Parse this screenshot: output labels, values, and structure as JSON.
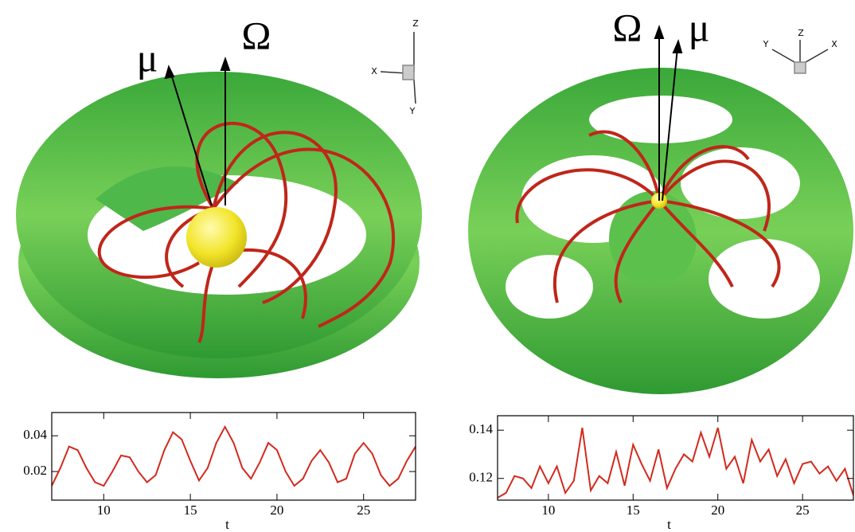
{
  "panels": [
    {
      "vectors": [
        "μ",
        "Ω"
      ],
      "triad": [
        "X",
        "Y",
        "Z"
      ]
    },
    {
      "vectors": [
        "Ω",
        "μ"
      ],
      "triad": [
        "Y",
        "Z",
        "X"
      ]
    }
  ],
  "chart_data": [
    {
      "type": "line",
      "xlabel": "t",
      "xlim": [
        7,
        28
      ],
      "xticks": [
        10,
        15,
        20,
        25
      ],
      "ylim": [
        0.004,
        0.053
      ],
      "yticks": [
        0.02,
        0.04
      ],
      "x": [
        7,
        7.5,
        8,
        8.5,
        9,
        9.5,
        10,
        10.5,
        11,
        11.5,
        12,
        12.5,
        13,
        13.5,
        14,
        14.5,
        15,
        15.5,
        16,
        16.5,
        17,
        17.5,
        18,
        18.5,
        19,
        19.5,
        20,
        20.5,
        21,
        21.5,
        22,
        22.5,
        23,
        23.5,
        24,
        24.5,
        25,
        25.5,
        26,
        26.5,
        27,
        27.5,
        28
      ],
      "series": [
        {
          "color": "#d22a1e",
          "values": [
            0.012,
            0.022,
            0.034,
            0.032,
            0.022,
            0.014,
            0.012,
            0.02,
            0.029,
            0.028,
            0.02,
            0.014,
            0.018,
            0.032,
            0.042,
            0.038,
            0.026,
            0.015,
            0.022,
            0.036,
            0.045,
            0.036,
            0.022,
            0.016,
            0.025,
            0.036,
            0.032,
            0.02,
            0.012,
            0.016,
            0.026,
            0.032,
            0.025,
            0.014,
            0.016,
            0.03,
            0.036,
            0.03,
            0.018,
            0.012,
            0.016,
            0.026,
            0.034
          ]
        }
      ]
    },
    {
      "type": "line",
      "xlabel": "t",
      "xlim": [
        7,
        28
      ],
      "xticks": [
        10,
        15,
        20,
        25
      ],
      "ylim": [
        0.111,
        0.146
      ],
      "yticks": [
        0.12,
        0.14
      ],
      "x": [
        7,
        7.5,
        8,
        8.5,
        9,
        9.5,
        10,
        10.5,
        11,
        11.5,
        12,
        12.5,
        13,
        13.5,
        14,
        14.5,
        15,
        15.5,
        16,
        16.5,
        17,
        17.5,
        18,
        18.5,
        19,
        19.5,
        20,
        20.5,
        21,
        21.5,
        22,
        22.5,
        23,
        23.5,
        24,
        24.5,
        25,
        25.5,
        26,
        26.5,
        27,
        27.5,
        28
      ],
      "series": [
        {
          "color": "#d22a1e",
          "values": [
            0.112,
            0.114,
            0.121,
            0.12,
            0.116,
            0.125,
            0.118,
            0.125,
            0.114,
            0.119,
            0.141,
            0.115,
            0.121,
            0.118,
            0.131,
            0.117,
            0.134,
            0.126,
            0.119,
            0.132,
            0.116,
            0.124,
            0.13,
            0.127,
            0.139,
            0.129,
            0.141,
            0.124,
            0.129,
            0.118,
            0.136,
            0.127,
            0.132,
            0.121,
            0.128,
            0.118,
            0.126,
            0.127,
            0.122,
            0.125,
            0.119,
            0.124,
            0.113
          ]
        }
      ]
    }
  ]
}
